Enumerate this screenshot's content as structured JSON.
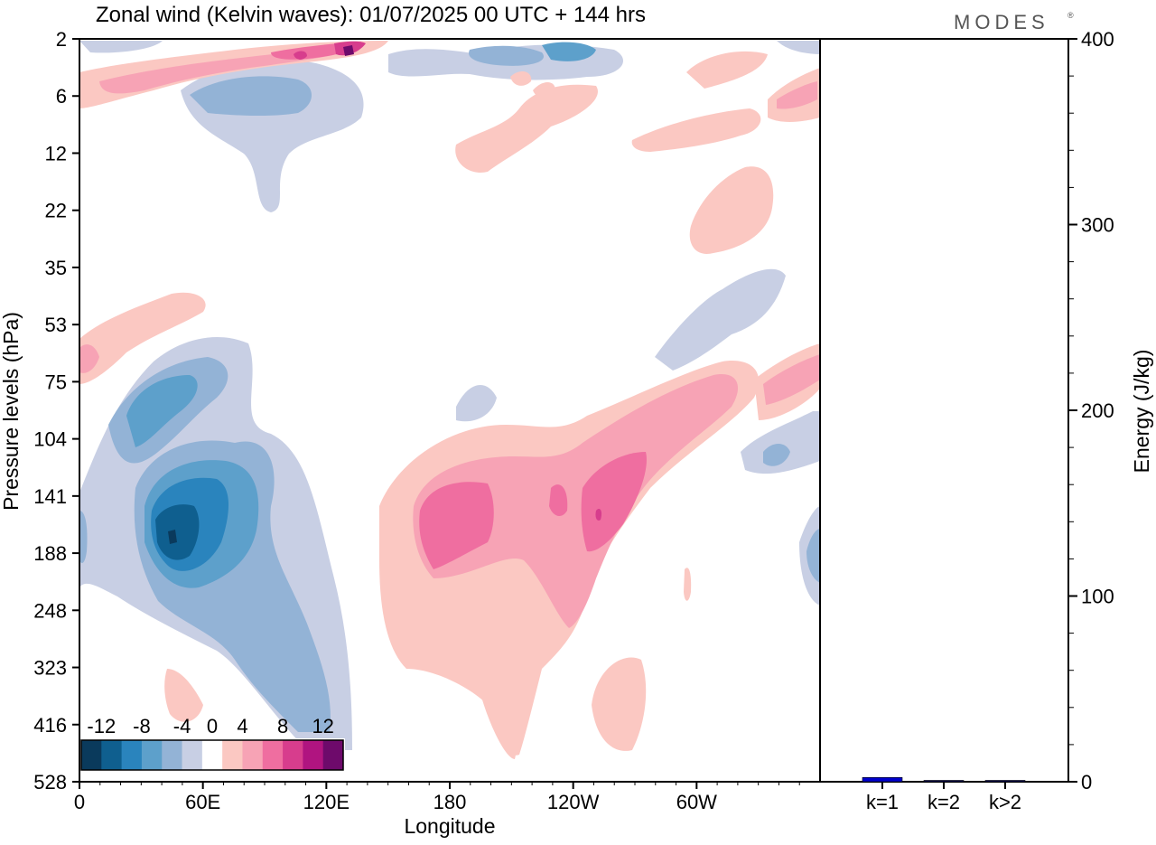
{
  "header": {
    "title": "Zonal wind (Kelvin waves):  01/07/2025  00 UTC  + 144 hrs",
    "brand": "MODES",
    "brand_mark": "®"
  },
  "chart_data": [
    {
      "type": "heatmap",
      "title": "Zonal wind (Kelvin waves):  01/07/2025  00 UTC  + 144 hrs",
      "xlabel": "Longitude",
      "ylabel": "Pressure levels (hPa)",
      "x_ticks": [
        "0",
        "60E",
        "120E",
        "180",
        "120W",
        "60W"
      ],
      "x_tick_lon": [
        0,
        60,
        120,
        180,
        240,
        300
      ],
      "xlim": [
        0,
        360
      ],
      "y_ticks": [
        "2",
        "6",
        "12",
        "22",
        "35",
        "53",
        "75",
        "104",
        "141",
        "188",
        "248",
        "323",
        "416",
        "528"
      ],
      "y_scale": "model levels (non-linear, pressure increasing downward)",
      "colorbar": {
        "ticks": [
          "-12",
          "-8",
          "-4",
          "0",
          "4",
          "8",
          "12"
        ],
        "levels": [
          -14,
          -12,
          -10,
          -8,
          -6,
          -4,
          -2,
          2,
          4,
          6,
          8,
          10,
          12,
          14
        ],
        "colors": [
          "#0a3a5c",
          "#0f5f8f",
          "#2a84bd",
          "#5da0cb",
          "#93b3d6",
          "#c8cfe4",
          "#ffffff",
          "#fbc8c2",
          "#f7a3b5",
          "#ef6ea0",
          "#d73d8d",
          "#b01480",
          "#6e0a6b"
        ]
      },
      "features": [
        {
          "sign": "negative",
          "peak": -12,
          "lon": 42,
          "level": "188",
          "desc": "strong easterly core in lower troposphere"
        },
        {
          "sign": "negative",
          "peak": -8,
          "lon": 30,
          "level": "104",
          "desc": "easterly branch tilting upward"
        },
        {
          "sign": "positive",
          "peak": 10,
          "lon": 250,
          "level": "141",
          "desc": "westerly maximum"
        },
        {
          "sign": "positive",
          "peak": 8,
          "lon": 185,
          "level": "141",
          "desc": "westerly anomaly over dateline"
        },
        {
          "sign": "positive",
          "peak": 12,
          "lon": 130,
          "level": "2",
          "desc": "upper stratosphere westerly"
        }
      ]
    },
    {
      "type": "bar",
      "ylabel": "Energy (J/kg)",
      "ylim": [
        0,
        400
      ],
      "y_ticks": [
        "0",
        "100",
        "200",
        "300",
        "400"
      ],
      "categories": [
        "k=1",
        "k=2",
        "k>2"
      ],
      "values": [
        2.3,
        0.4,
        0.6
      ],
      "bar_color": "#0000cc"
    }
  ]
}
